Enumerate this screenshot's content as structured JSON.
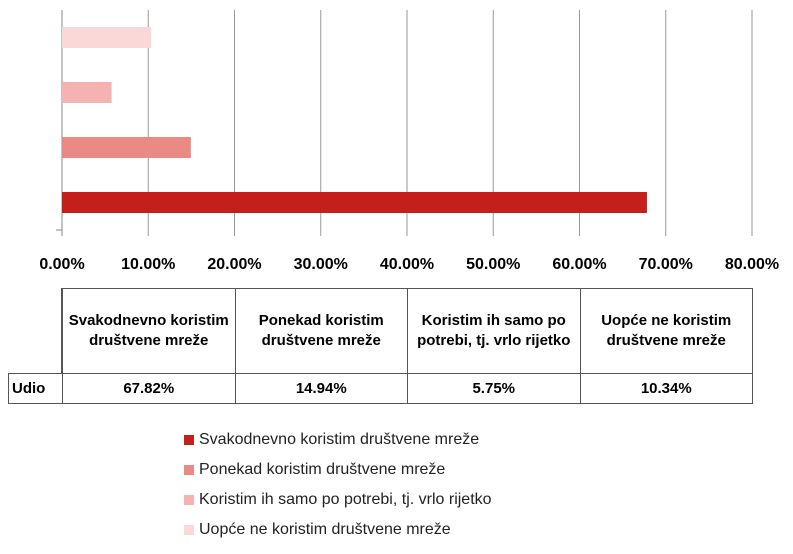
{
  "chart_data": {
    "type": "bar",
    "orientation": "horizontal",
    "series": [
      {
        "name": "Svakodnevno koristim društvene mreže",
        "color": "#c4201b",
        "values": [
          67.82
        ],
        "value_labels": [
          "67.82%"
        ]
      },
      {
        "name": "Ponekad koristim društvene mreže",
        "color": "#ea8a85",
        "values": [
          14.94
        ],
        "value_labels": [
          "14.94%"
        ]
      },
      {
        "name": "Koristim ih samo po potrebi, tj. vrlo rijetko",
        "color": "#f4b3b1",
        "values": [
          5.75
        ],
        "value_labels": [
          "5.75%"
        ]
      },
      {
        "name": "Uopće ne koristim društvene mreže",
        "color": "#f9d8d7",
        "values": [
          10.34
        ],
        "value_labels": [
          "10.34%"
        ]
      }
    ],
    "table_row_label": "Udio",
    "xlim": [
      0,
      80
    ],
    "xticks": [
      {
        "value": 0,
        "label": "0.00%"
      },
      {
        "value": 10,
        "label": "10.00%"
      },
      {
        "value": 20,
        "label": "20.00%"
      },
      {
        "value": 30,
        "label": "30.00%"
      },
      {
        "value": 40,
        "label": "40.00%"
      },
      {
        "value": 50,
        "label": "50.00%"
      },
      {
        "value": 60,
        "label": "60.00%"
      },
      {
        "value": 70,
        "label": "70.00%"
      },
      {
        "value": 80,
        "label": "80.00%"
      }
    ],
    "grid": true,
    "legend": "bottom"
  }
}
